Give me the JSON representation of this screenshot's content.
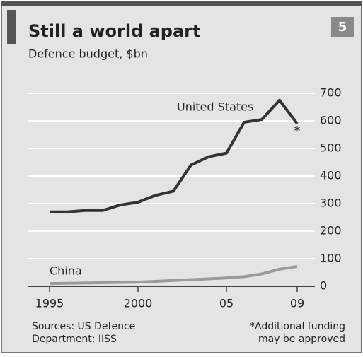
{
  "chart_data": {
    "type": "line",
    "panel_number": "5",
    "title": "Still a world apart",
    "subtitle": "Defence budget, $bn",
    "x": [
      1995,
      1996,
      1997,
      1998,
      1999,
      2000,
      2001,
      2002,
      2003,
      2004,
      2005,
      2006,
      2007,
      2008,
      2009
    ],
    "series": [
      {
        "name": "United States",
        "color": "#333333",
        "values": [
          270,
          270,
          275,
          275,
          295,
          305,
          330,
          345,
          440,
          470,
          483,
          595,
          605,
          675,
          590
        ]
      },
      {
        "name": "China",
        "color": "#9a9a9a",
        "values": [
          10,
          11,
          12,
          13,
          14,
          15,
          18,
          21,
          24,
          27,
          30,
          35,
          45,
          62,
          72
        ]
      }
    ],
    "marker": "*",
    "xlim": [
      1995,
      2009
    ],
    "xticks": [
      1995,
      2000,
      {
        "value": 2005,
        "label": "05"
      },
      {
        "value": 2009,
        "label": "09"
      }
    ],
    "ylim": [
      0,
      700
    ],
    "yticks": [
      0,
      100,
      200,
      300,
      400,
      500,
      600,
      700
    ],
    "grid": true,
    "source": [
      "Sources: US Defence",
      "Department; IISS"
    ],
    "note": [
      "*Additional funding",
      "may be approved"
    ]
  }
}
